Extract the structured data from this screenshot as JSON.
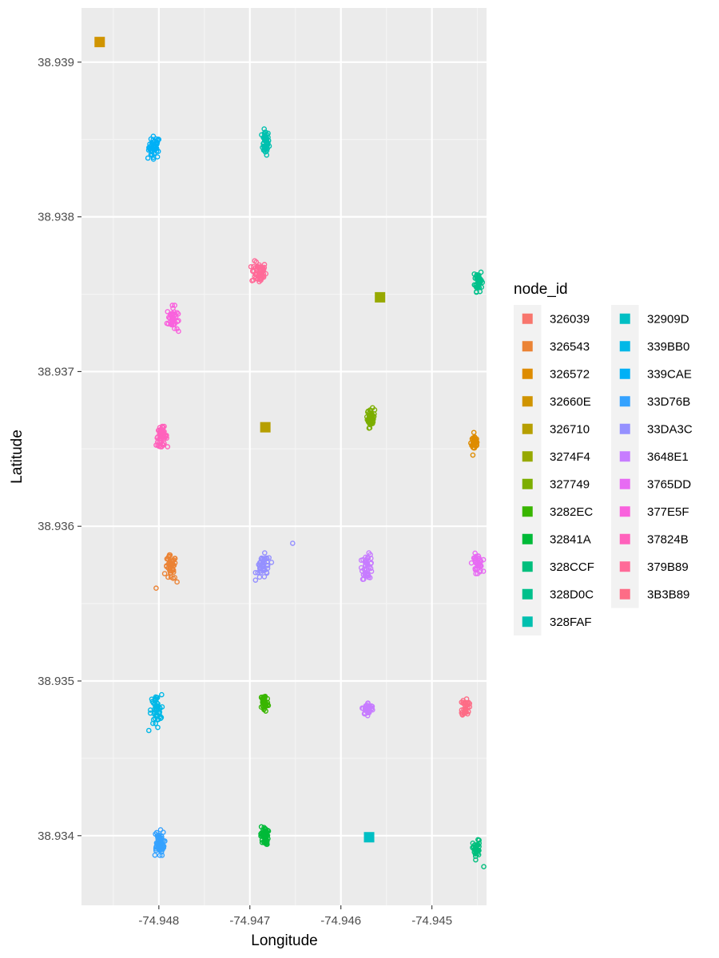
{
  "chart_data": {
    "type": "scatter",
    "xlabel": "Longitude",
    "ylabel": "Latitude",
    "xlim": [
      -74.94885,
      -74.9444
    ],
    "ylim": [
      38.93355,
      38.93935
    ],
    "x_ticks": [
      -74.948,
      -74.947,
      -74.946,
      -74.945
    ],
    "x_tick_labels": [
      "-74.948",
      "-74.947",
      "-74.946",
      "-74.945"
    ],
    "y_ticks": [
      38.934,
      38.935,
      38.936,
      38.937,
      38.938,
      38.939
    ],
    "y_tick_labels": [
      "38.934",
      "38.935",
      "38.936",
      "38.937",
      "38.938",
      "38.939"
    ],
    "grid": true,
    "legend": {
      "title": "node_id",
      "position": "right",
      "columns": 2,
      "entries": [
        {
          "id": "326039",
          "color": "#F8766D"
        },
        {
          "id": "326543",
          "color": "#EB8335"
        },
        {
          "id": "326572",
          "color": "#DE8C00"
        },
        {
          "id": "32660E",
          "color": "#D09400"
        },
        {
          "id": "326710",
          "color": "#B79F00"
        },
        {
          "id": "3274F4",
          "color": "#97A900"
        },
        {
          "id": "327749",
          "color": "#7CAE00"
        },
        {
          "id": "3282EC",
          "color": "#39B600"
        },
        {
          "id": "32841A",
          "color": "#00BA38"
        },
        {
          "id": "328CCF",
          "color": "#00BF7D"
        },
        {
          "id": "328D0C",
          "color": "#00C08B"
        },
        {
          "id": "328FAF",
          "color": "#00C0AF"
        },
        {
          "id": "32909D",
          "color": "#00BFC4"
        },
        {
          "id": "339BB0",
          "color": "#00B8E7"
        },
        {
          "id": "339CAE",
          "color": "#00B0F6"
        },
        {
          "id": "33D76B",
          "color": "#35A2FF"
        },
        {
          "id": "33DA3C",
          "color": "#9590FF"
        },
        {
          "id": "3648E1",
          "color": "#C77CFF"
        },
        {
          "id": "3765DD",
          "color": "#E76BF3"
        },
        {
          "id": "377E5F",
          "color": "#F962DD"
        },
        {
          "id": "37824B",
          "color": "#FF62BC"
        },
        {
          "id": "379B89",
          "color": "#FF6A98"
        },
        {
          "id": "3B3B89",
          "color": "#FD6C86"
        }
      ]
    },
    "clusters": [
      {
        "node_id": "32660E",
        "x": -74.94865,
        "y": 38.93913,
        "marker": "square"
      },
      {
        "node_id": "339CAE",
        "x": -74.94805,
        "y": 38.93845,
        "marker": "circle",
        "n": 45,
        "sx": 3e-05,
        "sy": 3.5e-05
      },
      {
        "node_id": "328FAF",
        "x": -74.94683,
        "y": 38.93848,
        "marker": "circle",
        "n": 45,
        "sx": 2e-05,
        "sy": 4e-05
      },
      {
        "node_id": "379B89",
        "x": -74.9469,
        "y": 38.93764,
        "marker": "circle",
        "n": 55,
        "sx": 4e-05,
        "sy": 3.5e-05
      },
      {
        "node_id": "328D0C",
        "x": -74.94449,
        "y": 38.93759,
        "marker": "circle",
        "n": 45,
        "sx": 2e-05,
        "sy": 3.5e-05
      },
      {
        "node_id": "3274F4",
        "x": -74.94557,
        "y": 38.93748,
        "marker": "square"
      },
      {
        "node_id": "377E5F",
        "x": -74.94785,
        "y": 38.93734,
        "marker": "circle",
        "n": 45,
        "sx": 3e-05,
        "sy": 4e-05
      },
      {
        "node_id": "326710",
        "x": -74.94683,
        "y": 38.93664,
        "marker": "square"
      },
      {
        "node_id": "327749",
        "x": -74.94567,
        "y": 38.9367,
        "marker": "circle",
        "n": 45,
        "sx": 2e-05,
        "sy": 3e-05
      },
      {
        "node_id": "37824B",
        "x": -74.94797,
        "y": 38.93658,
        "marker": "circle",
        "n": 55,
        "sx": 3e-05,
        "sy": 3e-05
      },
      {
        "node_id": "326572",
        "x": -74.94453,
        "y": 38.93654,
        "marker": "circle",
        "n": 40,
        "sx": 2e-05,
        "sy": 3e-05
      },
      {
        "node_id": "326543",
        "x": -74.94787,
        "y": 38.93573,
        "marker": "circle",
        "n": 45,
        "sx": 3e-05,
        "sy": 4e-05
      },
      {
        "node_id": "33DA3C",
        "x": -74.94685,
        "y": 38.93574,
        "marker": "circle",
        "n": 45,
        "sx": 4e-05,
        "sy": 4e-05
      },
      {
        "node_id": "3648E1",
        "x": -74.94571,
        "y": 38.93574,
        "marker": "circle",
        "n": 45,
        "sx": 3e-05,
        "sy": 4e-05
      },
      {
        "node_id": "3765DD",
        "x": -74.9445,
        "y": 38.93576,
        "marker": "circle",
        "n": 40,
        "sx": 3e-05,
        "sy": 3e-05
      },
      {
        "node_id": "339BB0",
        "x": -74.94803,
        "y": 38.93481,
        "marker": "circle",
        "n": 50,
        "sx": 3e-05,
        "sy": 5e-05
      },
      {
        "node_id": "3282EC",
        "x": -74.94684,
        "y": 38.93486,
        "marker": "circle",
        "n": 45,
        "sx": 2e-05,
        "sy": 3e-05
      },
      {
        "node_id": "3648E1",
        "x": -74.9457,
        "y": 38.93482,
        "marker": "circle",
        "n": 40,
        "sx": 3e-05,
        "sy": 2e-05
      },
      {
        "node_id": "3B3B89",
        "x": -74.94463,
        "y": 38.93483,
        "marker": "circle",
        "n": 35,
        "sx": 2e-05,
        "sy": 3e-05
      },
      {
        "node_id": "33D76B",
        "x": -74.948,
        "y": 38.93395,
        "marker": "circle",
        "n": 60,
        "sx": 3e-05,
        "sy": 4e-05
      },
      {
        "node_id": "32841A",
        "x": -74.94684,
        "y": 38.934,
        "marker": "circle",
        "n": 45,
        "sx": 2e-05,
        "sy": 3e-05
      },
      {
        "node_id": "32909D",
        "x": -74.94569,
        "y": 38.93399,
        "marker": "square"
      },
      {
        "node_id": "328CCF",
        "x": -74.94451,
        "y": 38.93391,
        "marker": "circle",
        "n": 40,
        "sx": 2e-05,
        "sy": 3e-05
      }
    ],
    "outliers": [
      {
        "node_id": "33DA3C",
        "x": -74.94653,
        "y": 38.93589
      },
      {
        "node_id": "326543",
        "x": -74.94803,
        "y": 38.9356
      },
      {
        "node_id": "326543",
        "x": -74.9478,
        "y": 38.93564
      },
      {
        "node_id": "339BB0",
        "x": -74.94811,
        "y": 38.93468
      },
      {
        "node_id": "328CCF",
        "x": -74.94443,
        "y": 38.9338
      },
      {
        "node_id": "326572",
        "x": -74.94455,
        "y": 38.93646
      },
      {
        "node_id": "339CAE",
        "x": -74.94812,
        "y": 38.93838
      }
    ]
  }
}
